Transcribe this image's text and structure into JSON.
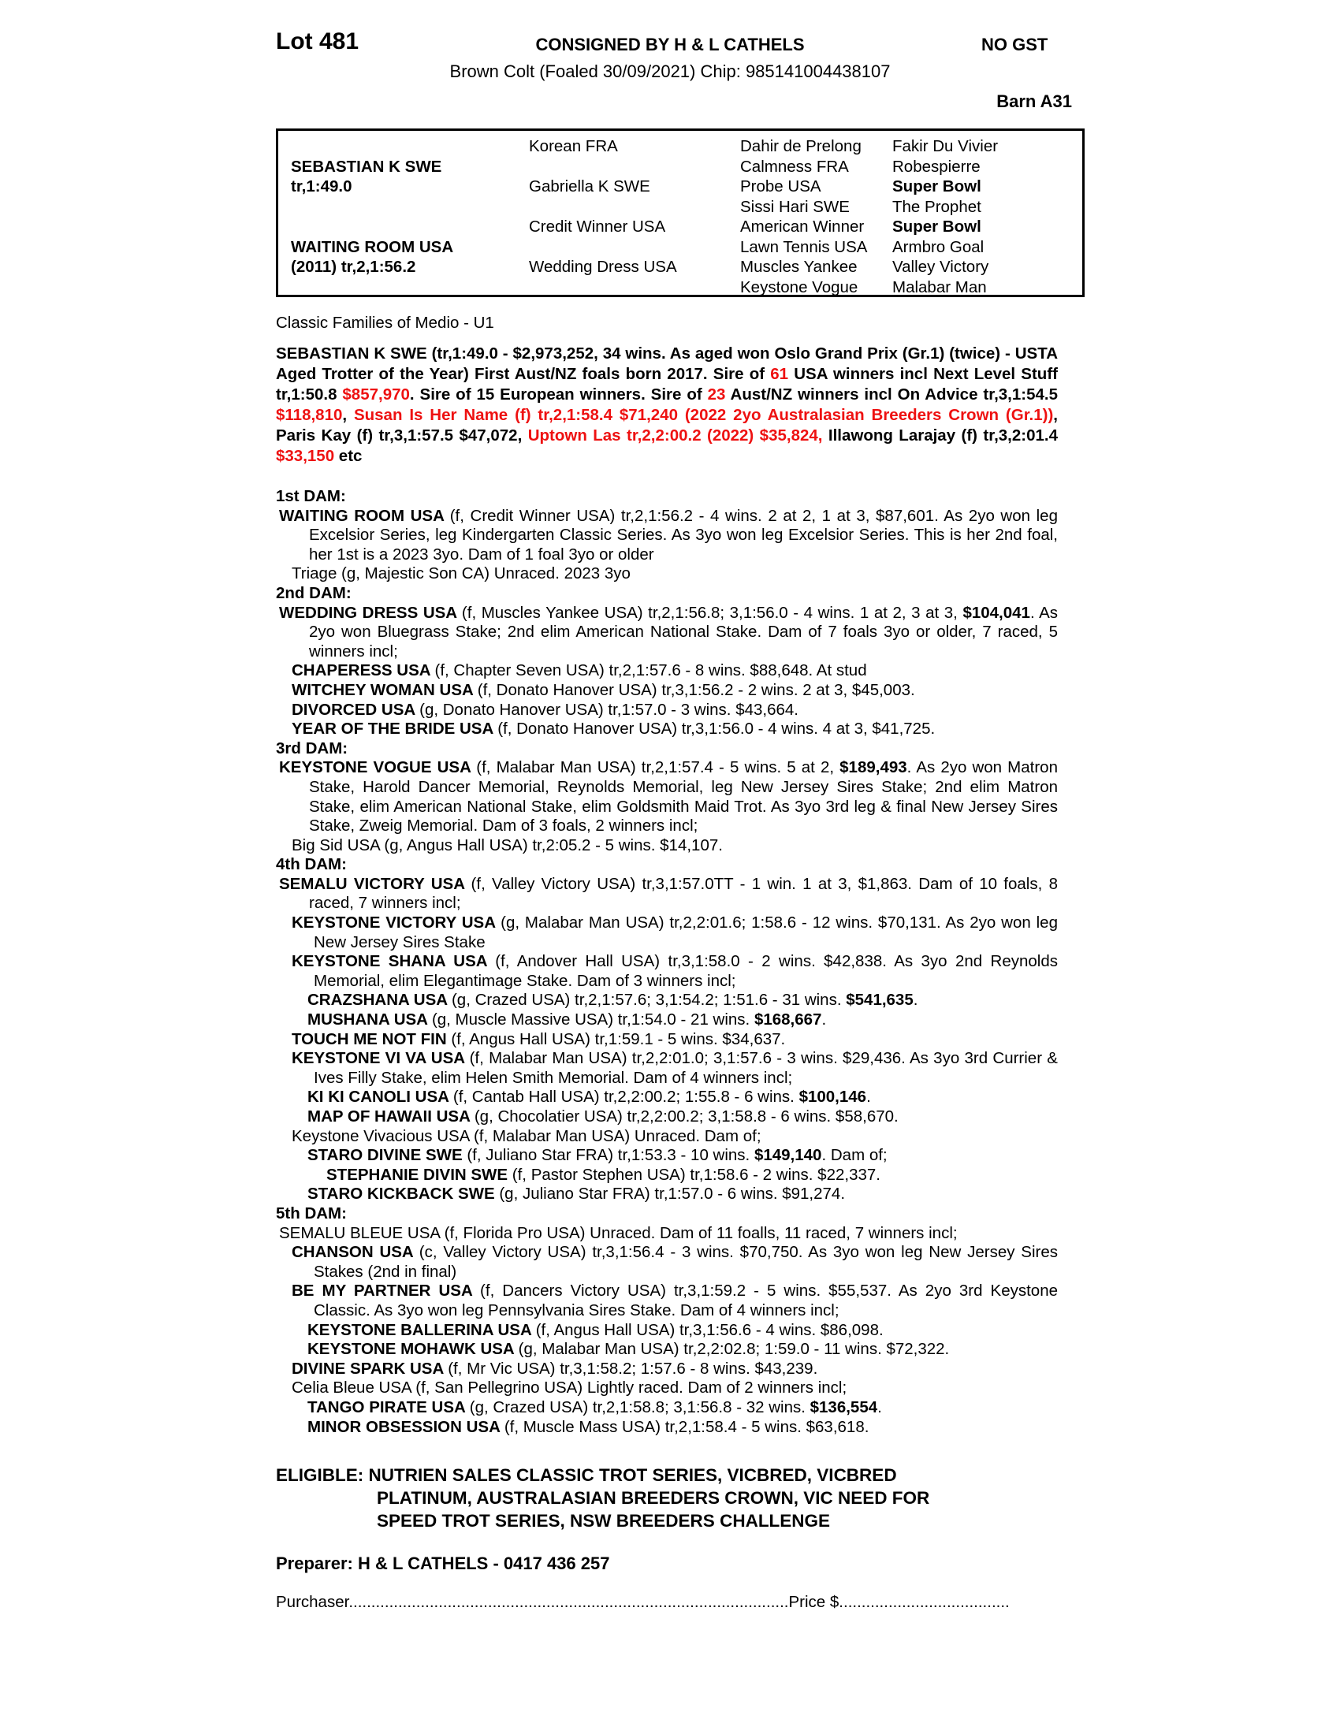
{
  "colors": {
    "red": "#ee1111",
    "text": "#000000"
  },
  "header": {
    "lot": "Lot 481",
    "consigned": "CONSIGNED BY H & L CATHELS",
    "no_gst": "NO GST",
    "subtitle": "Brown Colt (Foaled 30/09/2021) Chip: 985141004438107",
    "barn": "Barn A31"
  },
  "pedigree_table": {
    "col1": [
      "",
      "SEBASTIAN K SWE",
      "tr,1:49.0",
      "",
      "",
      "WAITING ROOM USA",
      "(2011) tr,2,1:56.2",
      ""
    ],
    "col2": [
      "Korean FRA",
      "",
      "Gabriella K SWE",
      "",
      "Credit Winner USA",
      "",
      "Wedding Dress USA",
      ""
    ],
    "col3": [
      "Dahir de Prelong",
      "Calmness FRA",
      "Probe USA",
      "Sissi Hari SWE",
      "American Winner",
      "Lawn Tennis USA",
      "Muscles Yankee",
      "Keystone Vogue"
    ],
    "col4": [
      {
        "t": "Fakir Du Vivier",
        "b": false
      },
      {
        "t": "Robespierre",
        "b": false
      },
      {
        "t": "Super Bowl",
        "b": true
      },
      {
        "t": "The Prophet",
        "b": false
      },
      {
        "t": "Super Bowl",
        "b": true
      },
      {
        "t": "Armbro Goal",
        "b": false
      },
      {
        "t": "Valley Victory",
        "b": false
      },
      {
        "t": "Malabar Man",
        "b": false
      }
    ]
  },
  "family_line": "Classic Families of Medio - U1",
  "sire_paragraph": [
    [
      "",
      "SEBASTIAN K SWE (tr,1:49.0 - $2,973,252, 34 wins. As aged won Oslo Grand Prix (Gr.1) (twice) - USTA Aged Trotter of the Year) First Aust/NZ foals born 2017. Sire of "
    ],
    [
      "r",
      "61"
    ],
    [
      "",
      " USA winners incl Next Level Stuff tr,1:50.8 "
    ],
    [
      "r",
      "$857,970"
    ],
    [
      "",
      ". Sire of 15 European winners. Sire of "
    ],
    [
      "r",
      "23"
    ],
    [
      "",
      " Aust/NZ winners incl On Advice tr,3,1:54.5 "
    ],
    [
      "r",
      "$118,810"
    ],
    [
      "",
      ", "
    ],
    [
      "r",
      "Susan Is Her Name (f) tr,2,1:58.4 $71,240 (2022 2yo Australasian Breeders Crown (Gr.1))"
    ],
    [
      "",
      ", Paris Kay (f) tr,3,1:57.5 $47,072, "
    ],
    [
      "r",
      "Uptown Las tr,2,2:00.2 (2022) $35,824,"
    ],
    [
      "",
      " Illawong Larajay (f) tr,3,2:01.4 "
    ],
    [
      "r",
      "$33,150"
    ],
    [
      "",
      " etc"
    ]
  ],
  "dam_sections": [
    {
      "label": "1st DAM:",
      "entries": [
        {
          "i": 0,
          "seg": [
            [
              "b",
              "WAITING ROOM USA "
            ],
            [
              "",
              "(f, Credit Winner USA) tr,2,1:56.2 - 4 wins. 2 at 2, 1 at 3, $87,601. As 2yo won leg Excelsior Series, leg Kindergarten Classic Series. As 3yo won leg Excelsior Series. This is her 2nd foal, her 1st is a 2023 3yo. Dam of 1 foal 3yo or older"
            ]
          ]
        },
        {
          "i": 1,
          "seg": [
            [
              "",
              "Triage (g, Majestic Son CA) Unraced. 2023 3yo"
            ]
          ]
        }
      ]
    },
    {
      "label": "2nd DAM:",
      "entries": [
        {
          "i": 0,
          "seg": [
            [
              "b",
              "WEDDING DRESS USA "
            ],
            [
              "",
              "(f, Muscles Yankee USA) tr,2,1:56.8; 3,1:56.0 - 4 wins. 1 at 2, 3 at 3, "
            ],
            [
              "b",
              "$104,041"
            ],
            [
              "",
              ". As 2yo won Bluegrass Stake; 2nd elim American National Stake. Dam of 7 foals 3yo or older, 7 raced, 5 winners incl;"
            ]
          ]
        },
        {
          "i": 1,
          "seg": [
            [
              "b",
              "CHAPERESS USA "
            ],
            [
              "",
              "(f, Chapter Seven USA) tr,2,1:57.6 - 8 wins. $88,648. At stud"
            ]
          ]
        },
        {
          "i": 1,
          "seg": [
            [
              "b",
              "WITCHEY WOMAN USA "
            ],
            [
              "",
              "(f, Donato Hanover USA) tr,3,1:56.2 - 2 wins. 2 at 3, $45,003."
            ]
          ]
        },
        {
          "i": 1,
          "seg": [
            [
              "b",
              "DIVORCED USA "
            ],
            [
              "",
              "(g, Donato Hanover USA) tr,1:57.0 - 3 wins. $43,664."
            ]
          ]
        },
        {
          "i": 1,
          "seg": [
            [
              "b",
              "YEAR OF THE BRIDE USA "
            ],
            [
              "",
              "(f, Donato Hanover USA) tr,3,1:56.0 - 4 wins. 4 at 3, $41,725."
            ]
          ]
        }
      ]
    },
    {
      "label": "3rd DAM:",
      "entries": [
        {
          "i": 0,
          "seg": [
            [
              "b",
              "KEYSTONE VOGUE USA "
            ],
            [
              "",
              "(f, Malabar Man USA) tr,2,1:57.4 - 5 wins. 5 at 2, "
            ],
            [
              "b",
              "$189,493"
            ],
            [
              "",
              ". As 2yo won Matron Stake, Harold Dancer Memorial, Reynolds Memorial, leg New Jersey Sires Stake; 2nd elim Matron Stake, elim American National Stake, elim Goldsmith Maid Trot. As 3yo 3rd leg & final New Jersey Sires Stake, Zweig Memorial. Dam of 3 foals, 2 winners incl;"
            ]
          ]
        },
        {
          "i": 1,
          "seg": [
            [
              "",
              "Big Sid USA (g, Angus Hall USA) tr,2:05.2 - 5 wins. $14,107."
            ]
          ]
        }
      ]
    },
    {
      "label": "4th DAM:",
      "entries": [
        {
          "i": 0,
          "seg": [
            [
              "b",
              "SEMALU VICTORY USA "
            ],
            [
              "",
              "(f, Valley Victory USA) tr,3,1:57.0TT - 1 win. 1 at 3, $1,863. Dam of 10 foals, 8 raced, 7 winners incl;"
            ]
          ]
        },
        {
          "i": 1,
          "seg": [
            [
              "b",
              "KEYSTONE VICTORY USA "
            ],
            [
              "",
              "(g, Malabar Man USA) tr,2,2:01.6; 1:58.6 - 12 wins. $70,131. As 2yo won leg New Jersey Sires Stake"
            ]
          ]
        },
        {
          "i": 1,
          "seg": [
            [
              "b",
              "KEYSTONE SHANA USA "
            ],
            [
              "",
              "(f, Andover Hall USA) tr,3,1:58.0 - 2 wins. $42,838. As 3yo 2nd Reynolds Memorial, elim Elegantimage Stake. Dam of 3 winners incl;"
            ]
          ]
        },
        {
          "i": 2,
          "seg": [
            [
              "b",
              "CRAZSHANA USA "
            ],
            [
              "",
              "(g, Crazed USA) tr,2,1:57.6; 3,1:54.2; 1:51.6 - 31 wins. "
            ],
            [
              "b",
              "$541,635"
            ],
            [
              "",
              "."
            ]
          ]
        },
        {
          "i": 2,
          "seg": [
            [
              "b",
              "MUSHANA USA "
            ],
            [
              "",
              "(g, Muscle Massive USA) tr,1:54.0 - 21 wins. "
            ],
            [
              "b",
              "$168,667"
            ],
            [
              "",
              "."
            ]
          ]
        },
        {
          "i": 1,
          "seg": [
            [
              "b",
              "TOUCH ME NOT FIN "
            ],
            [
              "",
              "(f, Angus Hall USA) tr,1:59.1 - 5 wins. $34,637."
            ]
          ]
        },
        {
          "i": 1,
          "seg": [
            [
              "b",
              "KEYSTONE VI VA USA "
            ],
            [
              "",
              "(f, Malabar Man USA) tr,2,2:01.0; 3,1:57.6 - 3 wins. $29,436. As 3yo 3rd Currier & Ives Filly Stake, elim Helen Smith Memorial. Dam of 4 winners incl;"
            ]
          ]
        },
        {
          "i": 2,
          "seg": [
            [
              "b",
              "KI KI CANOLI USA "
            ],
            [
              "",
              "(f, Cantab Hall USA) tr,2,2:00.2; 1:55.8 - 6 wins. "
            ],
            [
              "b",
              "$100,146"
            ],
            [
              "",
              "."
            ]
          ]
        },
        {
          "i": 2,
          "seg": [
            [
              "b",
              "MAP OF HAWAII USA "
            ],
            [
              "",
              "(g, Chocolatier USA) tr,2,2:00.2; 3,1:58.8 - 6 wins. $58,670."
            ]
          ]
        },
        {
          "i": 1,
          "seg": [
            [
              "",
              "Keystone Vivacious USA (f, Malabar Man USA) Unraced. Dam of;"
            ]
          ]
        },
        {
          "i": 2,
          "seg": [
            [
              "b",
              "STARO DIVINE SWE "
            ],
            [
              "",
              "(f, Juliano Star FRA) tr,1:53.3 - 10 wins. "
            ],
            [
              "b",
              "$149,140"
            ],
            [
              "",
              ". Dam of;"
            ]
          ]
        },
        {
          "i": 3,
          "seg": [
            [
              "b",
              "STEPHANIE DIVIN SWE "
            ],
            [
              "",
              "(f, Pastor Stephen USA) tr,1:58.6 - 2 wins. $22,337."
            ]
          ]
        },
        {
          "i": 2,
          "seg": [
            [
              "b",
              "STARO KICKBACK SWE "
            ],
            [
              "",
              "(g, Juliano Star FRA) tr,1:57.0 - 6 wins. $91,274."
            ]
          ]
        }
      ]
    },
    {
      "label": "5th DAM:",
      "entries": [
        {
          "i": 0,
          "seg": [
            [
              "",
              "SEMALU BLEUE USA (f, Florida Pro USA) Unraced. Dam of 11 foalls, 11 raced, 7 winners incl;"
            ]
          ]
        },
        {
          "i": 1,
          "seg": [
            [
              "b",
              "CHANSON USA "
            ],
            [
              "",
              "(c, Valley Victory USA) tr,3,1:56.4 - 3 wins. $70,750. As 3yo won leg New Jersey Sires Stakes (2nd in final)"
            ]
          ]
        },
        {
          "i": 1,
          "seg": [
            [
              "b",
              "BE MY PARTNER USA "
            ],
            [
              "",
              "(f, Dancers Victory USA) tr,3,1:59.2 - 5 wins. $55,537. As 2yo 3rd Keystone Classic. As 3yo won leg Pennsylvania Sires Stake. Dam of 4 winners incl;"
            ]
          ]
        },
        {
          "i": 2,
          "seg": [
            [
              "b",
              "KEYSTONE BALLERINA USA "
            ],
            [
              "",
              "(f, Angus Hall USA) tr,3,1:56.6 - 4 wins. $86,098."
            ]
          ]
        },
        {
          "i": 2,
          "seg": [
            [
              "b",
              "KEYSTONE MOHAWK USA "
            ],
            [
              "",
              "(g, Malabar Man USA) tr,2,2:02.8; 1:59.0 - 11 wins. $72,322."
            ]
          ]
        },
        {
          "i": 1,
          "seg": [
            [
              "b",
              "DIVINE SPARK USA "
            ],
            [
              "",
              "(f, Mr Vic USA) tr,3,1:58.2; 1:57.6 - 8 wins. $43,239."
            ]
          ]
        },
        {
          "i": 1,
          "seg": [
            [
              "",
              "Celia Bleue USA (f, San Pellegrino USA) Lightly raced. Dam of 2 winners incl;"
            ]
          ]
        },
        {
          "i": 2,
          "seg": [
            [
              "b",
              "TANGO PIRATE USA "
            ],
            [
              "",
              "(g, Crazed USA) tr,2,1:58.8; 3,1:56.8 - 32 wins. "
            ],
            [
              "b",
              "$136,554"
            ],
            [
              "",
              "."
            ]
          ]
        },
        {
          "i": 2,
          "seg": [
            [
              "b",
              "MINOR OBSESSION USA "
            ],
            [
              "",
              "(f, Muscle Mass USA) tr,2,1:58.4 - 5 wins. $63,618."
            ]
          ]
        }
      ]
    }
  ],
  "eligible": {
    "line1": "ELIGIBLE: NUTRIEN SALES CLASSIC TROT SERIES, VICBRED, VICBRED",
    "line2": "PLATINUM, AUSTRALASIAN BREEDERS CROWN, VIC NEED FOR",
    "line3": "SPEED TROT SERIES, NSW BREEDERS CHALLENGE"
  },
  "preparer": "Preparer: H & L CATHELS - 0417 436 257",
  "purchaser": {
    "label": "Purchaser",
    "dots": "..................................................................................................",
    "price_label": "Price $",
    "price_dots": "......................................"
  }
}
